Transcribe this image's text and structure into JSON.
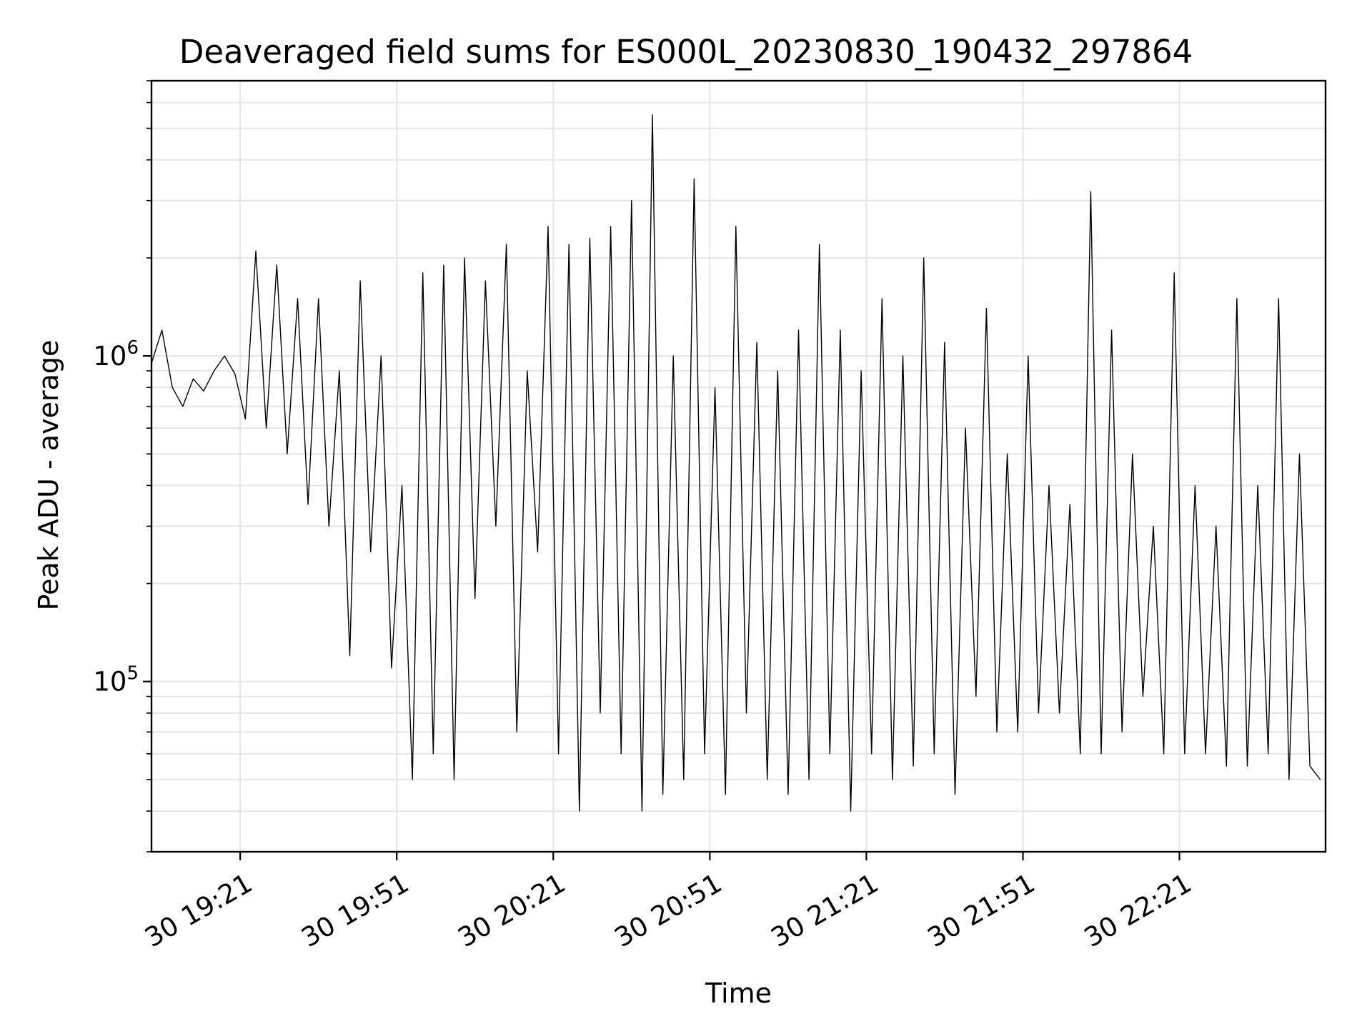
{
  "chart_data": {
    "type": "line",
    "title": "Deaveraged field sums for ES000L_20230830_190432_297864",
    "xlabel": "Time",
    "ylabel": "Peak ADU - average",
    "yscale": "log",
    "ylim": [
      30000,
      7000000
    ],
    "xlim": [
      "2023-08-30 19:04",
      "2023-08-30 22:49"
    ],
    "x_ticks": [
      {
        "time": "2023-08-30 19:21",
        "label": "30 19:21"
      },
      {
        "time": "2023-08-30 19:51",
        "label": "30 19:51"
      },
      {
        "time": "2023-08-30 20:21",
        "label": "30 20:21"
      },
      {
        "time": "2023-08-30 20:51",
        "label": "30 20:51"
      },
      {
        "time": "2023-08-30 21:21",
        "label": "30 21:21"
      },
      {
        "time": "2023-08-30 21:51",
        "label": "30 21:51"
      },
      {
        "time": "2023-08-30 22:21",
        "label": "30 22:21"
      }
    ],
    "y_ticks": [
      {
        "value": 100000,
        "base": "10",
        "exp": "5"
      },
      {
        "value": 1000000,
        "base": "10",
        "exp": "6"
      }
    ],
    "grid": true,
    "line_color": "#000000",
    "grid_color": "#e5e5e5",
    "series": [
      {
        "x": [
          "2023-08-30 19:04",
          "2023-08-30 19:06",
          "2023-08-30 19:08",
          "2023-08-30 19:10",
          "2023-08-30 19:12",
          "2023-08-30 19:14",
          "2023-08-30 19:16",
          "2023-08-30 19:18",
          "2023-08-30 19:20",
          "2023-08-30 19:22",
          "2023-08-30 19:24",
          "2023-08-30 19:26",
          "2023-08-30 19:28",
          "2023-08-30 19:30",
          "2023-08-30 19:32",
          "2023-08-30 19:34",
          "2023-08-30 19:36",
          "2023-08-30 19:38",
          "2023-08-30 19:40",
          "2023-08-30 19:42",
          "2023-08-30 19:44",
          "2023-08-30 19:46",
          "2023-08-30 19:48",
          "2023-08-30 19:50",
          "2023-08-30 19:52",
          "2023-08-30 19:54",
          "2023-08-30 19:56",
          "2023-08-30 19:58",
          "2023-08-30 20:00",
          "2023-08-30 20:02",
          "2023-08-30 20:04",
          "2023-08-30 20:06",
          "2023-08-30 20:08",
          "2023-08-30 20:10",
          "2023-08-30 20:12",
          "2023-08-30 20:14",
          "2023-08-30 20:16",
          "2023-08-30 20:18",
          "2023-08-30 20:20",
          "2023-08-30 20:22",
          "2023-08-30 20:24",
          "2023-08-30 20:26",
          "2023-08-30 20:28",
          "2023-08-30 20:30",
          "2023-08-30 20:32",
          "2023-08-30 20:34",
          "2023-08-30 20:36",
          "2023-08-30 20:38",
          "2023-08-30 20:40",
          "2023-08-30 20:42",
          "2023-08-30 20:44",
          "2023-08-30 20:46",
          "2023-08-30 20:48",
          "2023-08-30 20:50",
          "2023-08-30 20:52",
          "2023-08-30 20:54",
          "2023-08-30 20:56",
          "2023-08-30 20:58",
          "2023-08-30 21:00",
          "2023-08-30 21:02",
          "2023-08-30 21:04",
          "2023-08-30 21:06",
          "2023-08-30 21:08",
          "2023-08-30 21:10",
          "2023-08-30 21:12",
          "2023-08-30 21:14",
          "2023-08-30 21:16",
          "2023-08-30 21:18",
          "2023-08-30 21:20",
          "2023-08-30 21:22",
          "2023-08-30 21:24",
          "2023-08-30 21:26",
          "2023-08-30 21:28",
          "2023-08-30 21:30",
          "2023-08-30 21:32",
          "2023-08-30 21:34",
          "2023-08-30 21:36",
          "2023-08-30 21:38",
          "2023-08-30 21:40",
          "2023-08-30 21:42",
          "2023-08-30 21:44",
          "2023-08-30 21:46",
          "2023-08-30 21:48",
          "2023-08-30 21:50",
          "2023-08-30 21:52",
          "2023-08-30 21:54",
          "2023-08-30 21:56",
          "2023-08-30 21:58",
          "2023-08-30 22:00",
          "2023-08-30 22:02",
          "2023-08-30 22:04",
          "2023-08-30 22:06",
          "2023-08-30 22:08",
          "2023-08-30 22:10",
          "2023-08-30 22:12",
          "2023-08-30 22:14",
          "2023-08-30 22:16",
          "2023-08-30 22:18",
          "2023-08-30 22:20",
          "2023-08-30 22:22",
          "2023-08-30 22:24",
          "2023-08-30 22:26",
          "2023-08-30 22:28",
          "2023-08-30 22:30",
          "2023-08-30 22:32",
          "2023-08-30 22:34",
          "2023-08-30 22:36",
          "2023-08-30 22:38",
          "2023-08-30 22:40",
          "2023-08-30 22:42",
          "2023-08-30 22:44",
          "2023-08-30 22:46",
          "2023-08-30 22:48"
        ],
        "y": [
          950000,
          1200000,
          800000,
          700000,
          850000,
          780000,
          900000,
          1000000,
          880000,
          640000,
          2100000,
          600000,
          1900000,
          500000,
          1500000,
          350000,
          1500000,
          300000,
          900000,
          120000,
          1700000,
          250000,
          1000000,
          110000,
          400000,
          50000,
          1800000,
          60000,
          1900000,
          50000,
          2000000,
          180000,
          1700000,
          300000,
          2200000,
          70000,
          900000,
          250000,
          2500000,
          60000,
          2200000,
          40000,
          2300000,
          80000,
          2500000,
          60000,
          3000000,
          40000,
          5500000,
          45000,
          1000000,
          50000,
          3500000,
          60000,
          800000,
          45000,
          2500000,
          80000,
          1100000,
          50000,
          900000,
          45000,
          1200000,
          50000,
          2200000,
          60000,
          1200000,
          40000,
          900000,
          60000,
          1500000,
          50000,
          1000000,
          55000,
          2000000,
          60000,
          1100000,
          45000,
          600000,
          90000,
          1400000,
          70000,
          500000,
          70000,
          1000000,
          80000,
          400000,
          80000,
          350000,
          60000,
          3200000,
          60000,
          1200000,
          70000,
          500000,
          90000,
          300000,
          60000,
          1800000,
          60000,
          400000,
          60000,
          300000,
          55000,
          1500000,
          55000,
          400000,
          60000,
          1500000,
          50000,
          500000,
          55000,
          50000
        ]
      }
    ]
  }
}
